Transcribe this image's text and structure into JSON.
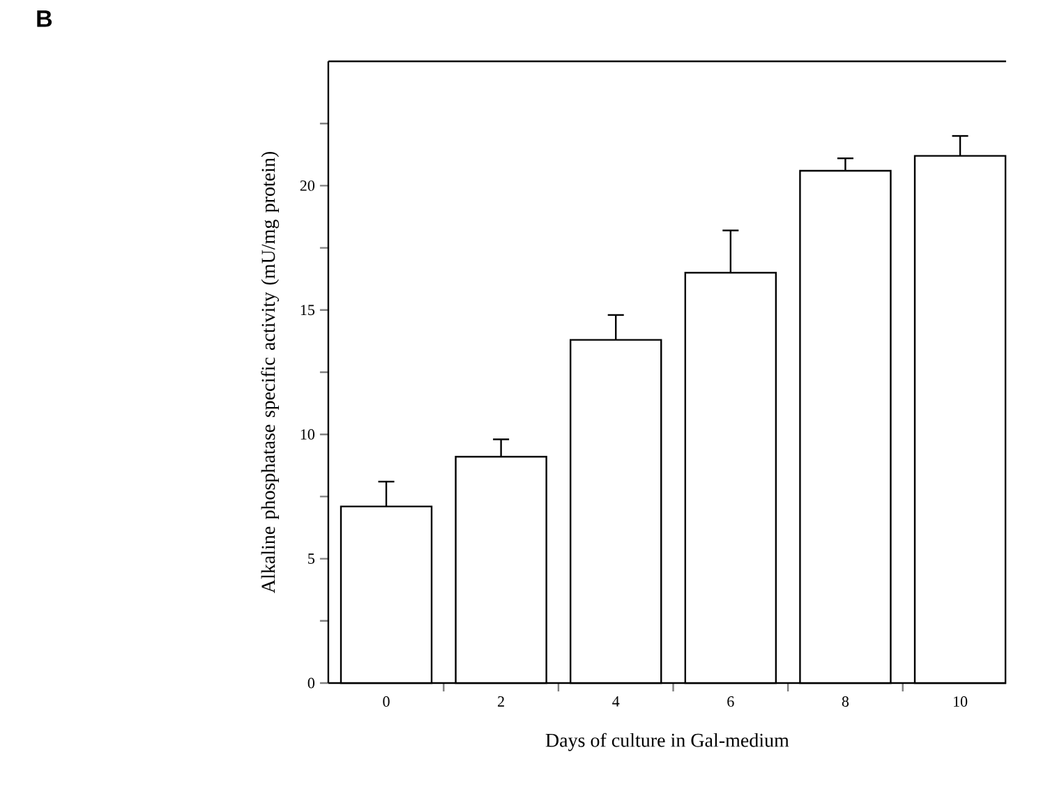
{
  "chart_data": {
    "type": "bar",
    "categories": [
      "0",
      "2",
      "4",
      "6",
      "8",
      "10"
    ],
    "values": [
      7.1,
      9.1,
      13.8,
      16.5,
      20.6,
      21.2
    ],
    "errors": [
      [
        7.1,
        8.1
      ],
      [
        9.1,
        9.8
      ],
      [
        13.8,
        14.8
      ],
      [
        16.5,
        18.2
      ],
      [
        20.6,
        21.1
      ],
      [
        21.2,
        22.0
      ]
    ],
    "color": "#ffffff",
    "ylim": [
      0,
      25
    ],
    "yticks": [
      0,
      5,
      10,
      15,
      20,
      {
        "value": 2.5,
        "label": null
      },
      {
        "value": 7.5,
        "label": null
      },
      {
        "value": 12.5,
        "label": null
      },
      {
        "value": 17.5,
        "label": null
      },
      {
        "value": 22.5,
        "label": null
      }
    ],
    "xlabel": "Days of culture in Gal-medium",
    "ylabel": "Alkaline phosphatase specific activity (mU/mg protein)",
    "annotations": [
      "B"
    ],
    "grid": false
  }
}
